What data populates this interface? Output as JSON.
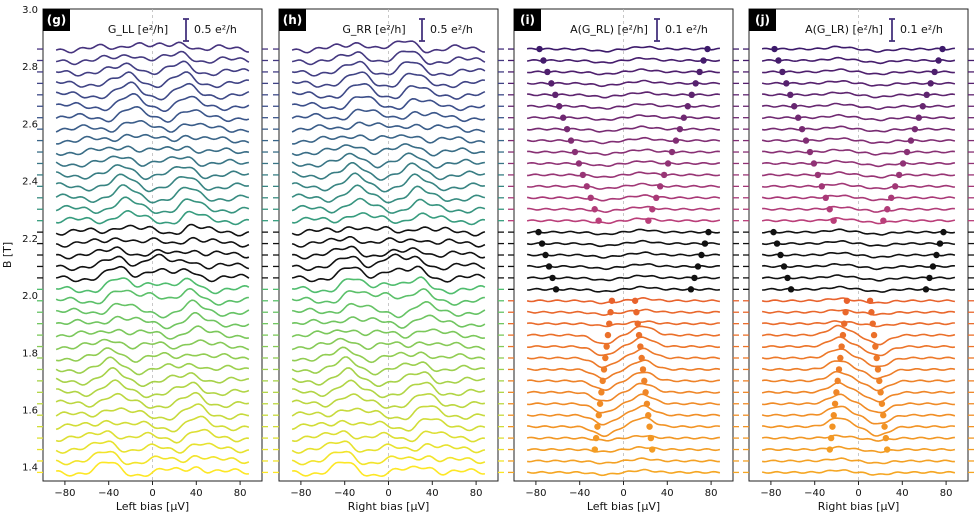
{
  "figure": {
    "y_axis_label": "B [T]",
    "y_ticks": [
      "1.4",
      "1.6",
      "1.8",
      "2.0",
      "2.2",
      "2.4",
      "2.6",
      "2.8",
      "3.0"
    ],
    "colors": {
      "low": "#fde725",
      "mid": "#35b779",
      "high": "#3b528b",
      "top": "#46337e",
      "dark": "#111111",
      "orange_low": "#f5a623",
      "orange_high": "#e8602c",
      "purple_low": "#c0407a",
      "purple_high": "#3d1a6b"
    }
  },
  "chart_data": [
    {
      "type": "line",
      "panel": "(g)",
      "title": "G_LL [e²/h]",
      "scalebar_label": "0.5 e²/h",
      "xlabel": "Left bias [μV]",
      "ylabel": "B [T]",
      "xlim": [
        -100,
        100
      ],
      "ylim": [
        1.35,
        3.0
      ],
      "xticks": [
        "−80",
        "−40",
        "0",
        "40",
        "80"
      ],
      "trace_field_range": [
        1.38,
        2.86
      ],
      "trace_count": 38,
      "style": "viridis waterfall of differential conductance, black traces between 2.05 T and 2.25 T"
    },
    {
      "type": "line",
      "panel": "(h)",
      "title": "G_RR [e²/h]",
      "scalebar_label": "0.5 e²/h",
      "xlabel": "Right bias [μV]",
      "ylabel": "",
      "xlim": [
        -100,
        100
      ],
      "ylim": [
        1.35,
        3.0
      ],
      "xticks": [
        "−80",
        "−40",
        "0",
        "40",
        "80"
      ],
      "trace_field_range": [
        1.38,
        2.86
      ],
      "trace_count": 38,
      "style": "viridis waterfall of differential conductance, black traces between 2.05 T and 2.25 T"
    },
    {
      "type": "line",
      "panel": "(i)",
      "title": "A(G_RL) [e²/h]",
      "scalebar_label": "0.1 e²/h",
      "xlabel": "Left bias [μV]",
      "ylabel": "",
      "xlim": [
        -100,
        100
      ],
      "ylim": [
        1.35,
        3.0
      ],
      "xticks": [
        "−80",
        "−40",
        "0",
        "40",
        "80"
      ],
      "trace_field_range": [
        1.38,
        2.86
      ],
      "trace_count": 38,
      "style": "antisymmetric nonlocal conductance; orange below 2.0 T, black 2.0–2.25 T, magenta/purple above; dots mark sign changes"
    },
    {
      "type": "line",
      "panel": "(j)",
      "title": "A(G_LR) [e²/h]",
      "scalebar_label": "0.1 e²/h",
      "xlabel": "Right bias [μV]",
      "ylabel": "",
      "xlim": [
        -100,
        100
      ],
      "ylim": [
        1.35,
        3.0
      ],
      "xticks": [
        "−80",
        "−40",
        "0",
        "40",
        "80"
      ],
      "trace_field_range": [
        1.38,
        2.86
      ],
      "trace_count": 38,
      "style": "antisymmetric nonlocal conductance; orange below 2.0 T, black 2.0–2.25 T, magenta/purple above; dots mark sign changes"
    }
  ]
}
